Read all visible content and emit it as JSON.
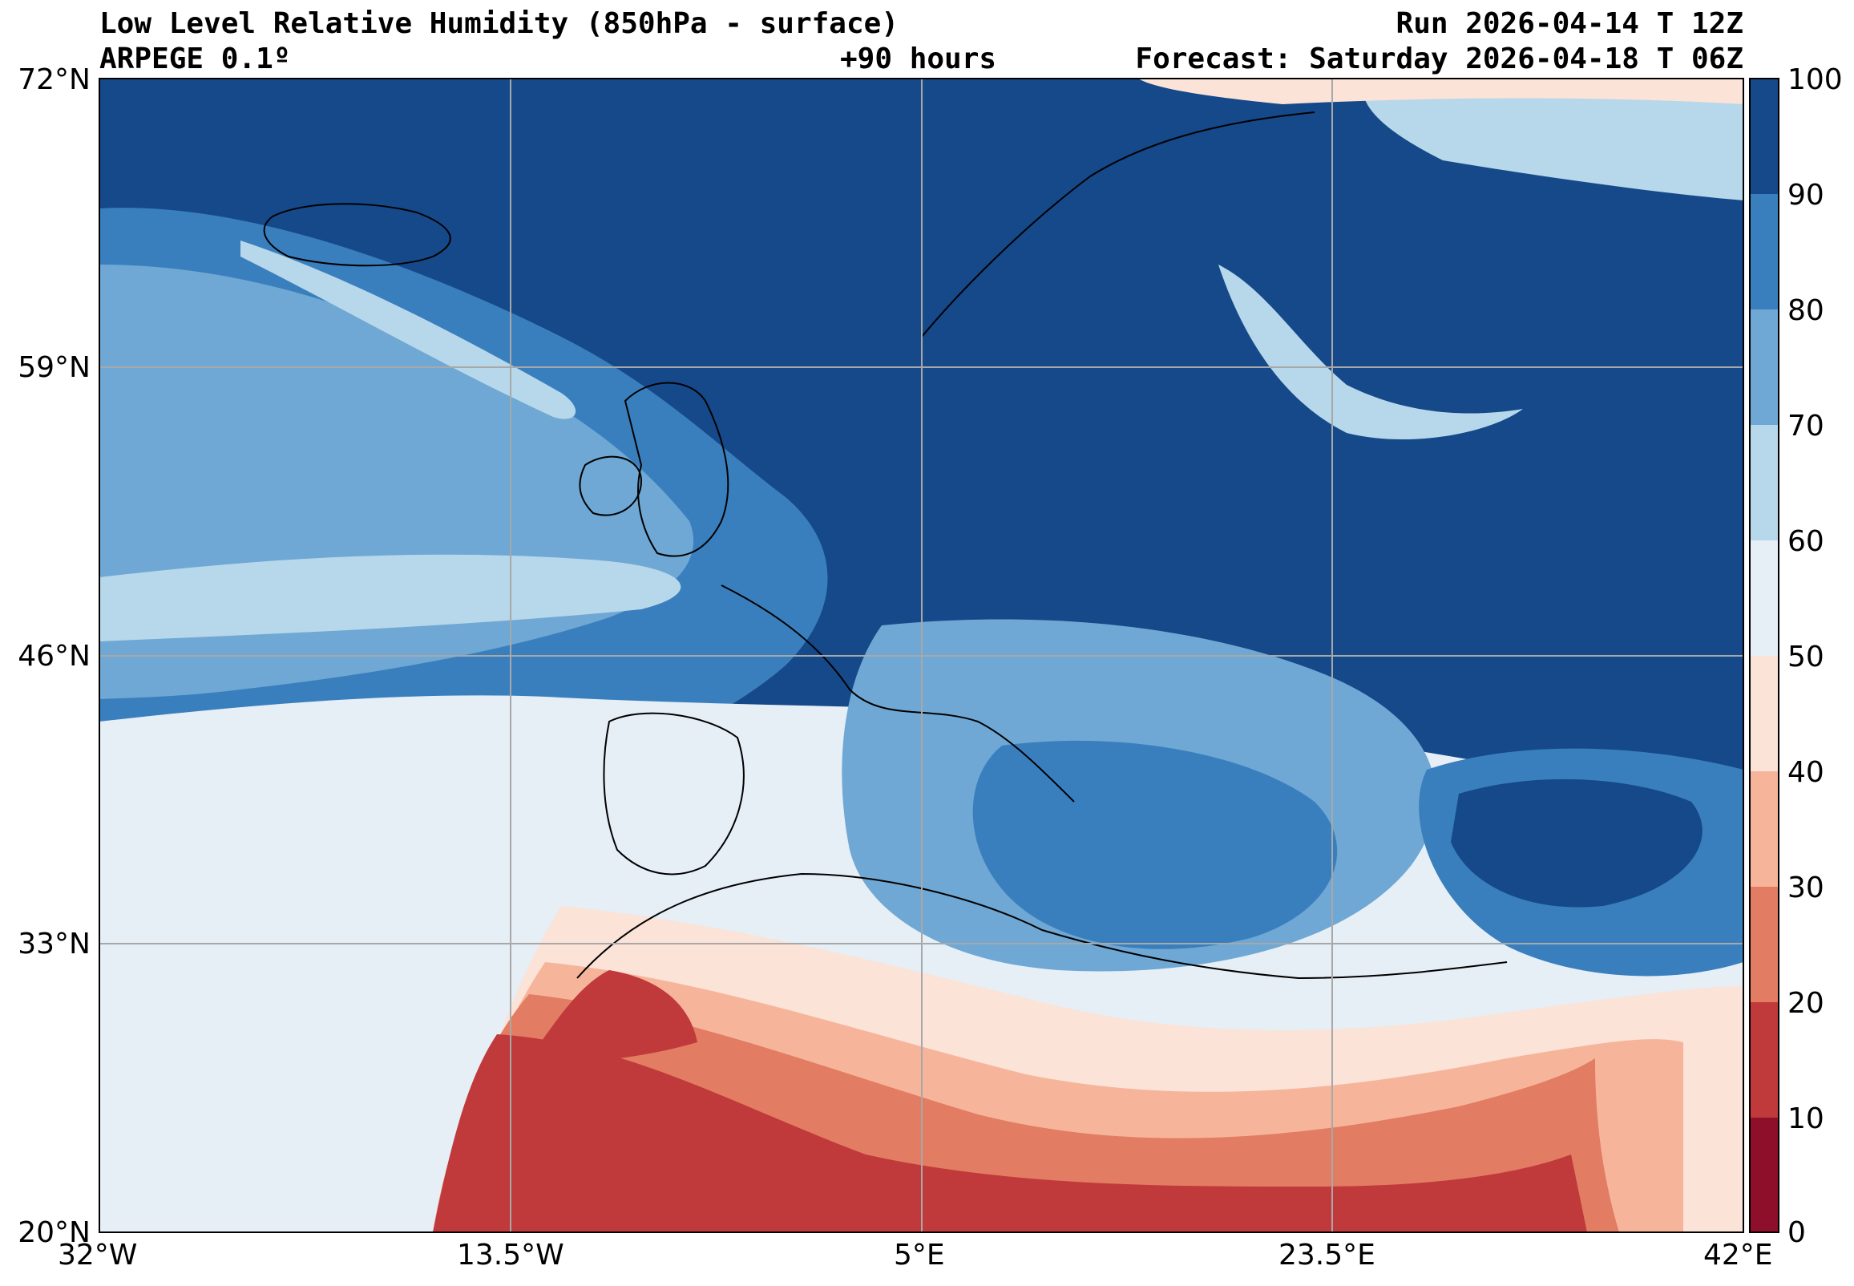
{
  "header": {
    "title": "Low Level Relative Humidity (850hPa - surface)",
    "model": "ARPEGE 0.1º",
    "lead": "+90 hours",
    "run": "Run 2026-04-14 T 12Z",
    "forecast": "Forecast: Saturday 2026-04-18 T 06Z"
  },
  "map": {
    "extent": {
      "lon": [
        -32,
        42
      ],
      "lat": [
        20,
        72
      ]
    },
    "lat_ticks": [
      {
        "value": 72,
        "label": "72°N"
      },
      {
        "value": 59,
        "label": "59°N"
      },
      {
        "value": 46,
        "label": "46°N"
      },
      {
        "value": 33,
        "label": "33°N"
      },
      {
        "value": 20,
        "label": "20°N"
      }
    ],
    "lon_ticks": [
      {
        "value": -32,
        "label": "32°W"
      },
      {
        "value": -13.5,
        "label": "13.5°W"
      },
      {
        "value": 5,
        "label": "5°E"
      },
      {
        "value": 23.5,
        "label": "23.5°E"
      },
      {
        "value": 42,
        "label": "42°E"
      }
    ],
    "background_color": "#1a4f8c"
  },
  "colorbar": {
    "levels": [
      0,
      10,
      20,
      30,
      40,
      50,
      60,
      70,
      80,
      90,
      100
    ],
    "colors": [
      "#8e0f2a",
      "#c0393b",
      "#e27c63",
      "#f6b59a",
      "#fbe3d8",
      "#e6eef6",
      "#b7d7ea",
      "#6fa8d4",
      "#3a7fbd",
      "#15498a"
    ]
  },
  "chart_data": {
    "type": "heatmap",
    "title": "Low Level Relative Humidity (850hPa - surface)",
    "xlabel": "",
    "ylabel": "",
    "xlim": [
      -32,
      42
    ],
    "ylim": [
      20,
      72
    ],
    "colorbar_range": [
      0,
      100
    ]
  }
}
